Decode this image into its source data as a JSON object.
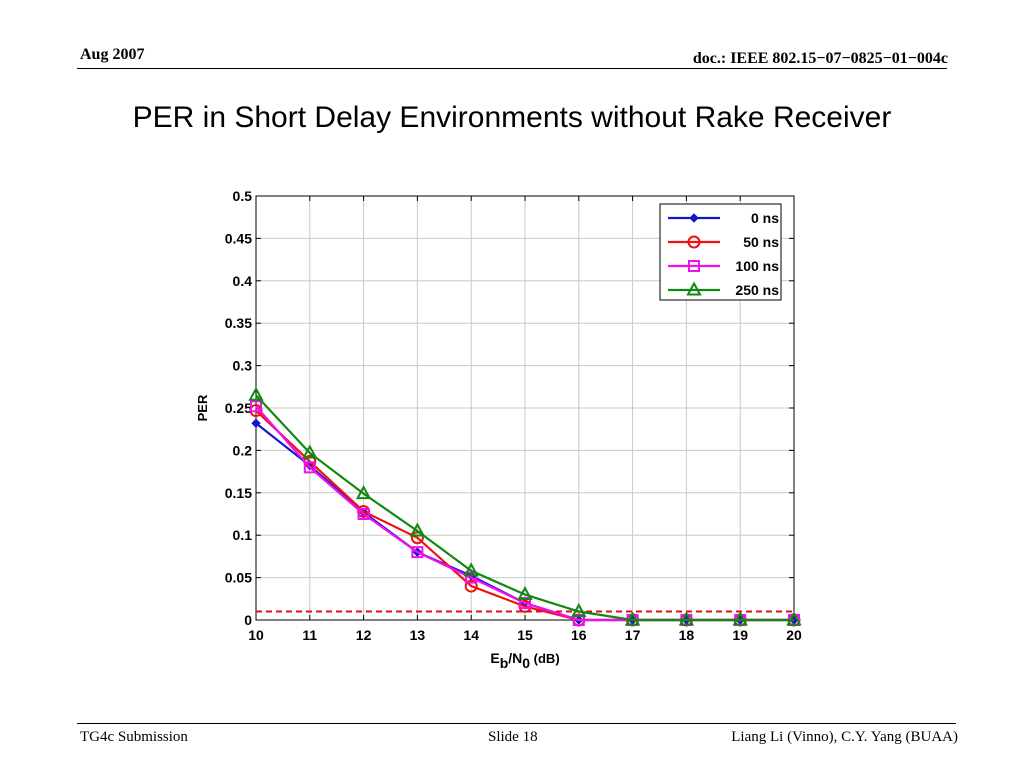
{
  "header": {
    "date": "Aug 2007",
    "doc_id": "doc.: IEEE 802.15−07−0825−01−004c"
  },
  "slide_title": "PER in Short Delay Environments without Rake Receiver",
  "footer": {
    "left": "TG4c Submission",
    "center": "Slide 18",
    "right": "Liang Li (Vinno), C.Y. Yang (BUAA)"
  },
  "colors": {
    "series_0ns": "#1515cc",
    "series_50ns": "#ee1111",
    "series_100ns": "#ee11ee",
    "series_250ns": "#118811",
    "threshold": "#dd1111",
    "grid": "#c8c8c8"
  },
  "chart_data": {
    "type": "line",
    "title": "",
    "xlabel": "Eb/N0 (dB)",
    "xlabel_parts": {
      "E": "E",
      "b": "b",
      "slash_n": "/N",
      "zero": "0",
      "unit": " (dB)"
    },
    "ylabel": "PER",
    "xlim": [
      10,
      20
    ],
    "ylim": [
      0,
      0.5
    ],
    "x_ticks": [
      10,
      11,
      12,
      13,
      14,
      15,
      16,
      17,
      18,
      19,
      20
    ],
    "y_ticks": [
      0,
      0.05,
      0.1,
      0.15,
      0.2,
      0.25,
      0.3,
      0.35,
      0.4,
      0.45,
      0.5
    ],
    "y_tick_labels": [
      "0",
      "0.05",
      "0.1",
      "0.15",
      "0.2",
      "0.25",
      "0.3",
      "0.35",
      "0.4",
      "0.45",
      "0.5"
    ],
    "grid": true,
    "legend_position": "top-right",
    "x": [
      10,
      11,
      12,
      13,
      14,
      15,
      16,
      17,
      18,
      19,
      20
    ],
    "series": [
      {
        "name": "0 ns",
        "color": "#1515cc",
        "marker": "diamond",
        "values": [
          0.232,
          0.182,
          0.127,
          0.08,
          0.052,
          0.02,
          0.0,
          0.0,
          0.0,
          0.0,
          0.0
        ]
      },
      {
        "name": "50 ns",
        "color": "#ee1111",
        "marker": "circle",
        "values": [
          0.247,
          0.187,
          0.128,
          0.097,
          0.04,
          0.016,
          0.0,
          0.0,
          0.0,
          0.0,
          0.0
        ]
      },
      {
        "name": "100 ns",
        "color": "#ee11ee",
        "marker": "square",
        "values": [
          0.252,
          0.18,
          0.125,
          0.08,
          0.05,
          0.02,
          0.0,
          0.0,
          0.0,
          0.0,
          0.0
        ]
      },
      {
        "name": "250 ns",
        "color": "#118811",
        "marker": "triangle",
        "values": [
          0.265,
          0.197,
          0.149,
          0.105,
          0.058,
          0.03,
          0.01,
          0.0,
          0.0,
          0.0,
          0.0
        ]
      }
    ],
    "threshold_line": {
      "y": 0.01,
      "style": "dashed",
      "color": "#dd1111"
    }
  }
}
